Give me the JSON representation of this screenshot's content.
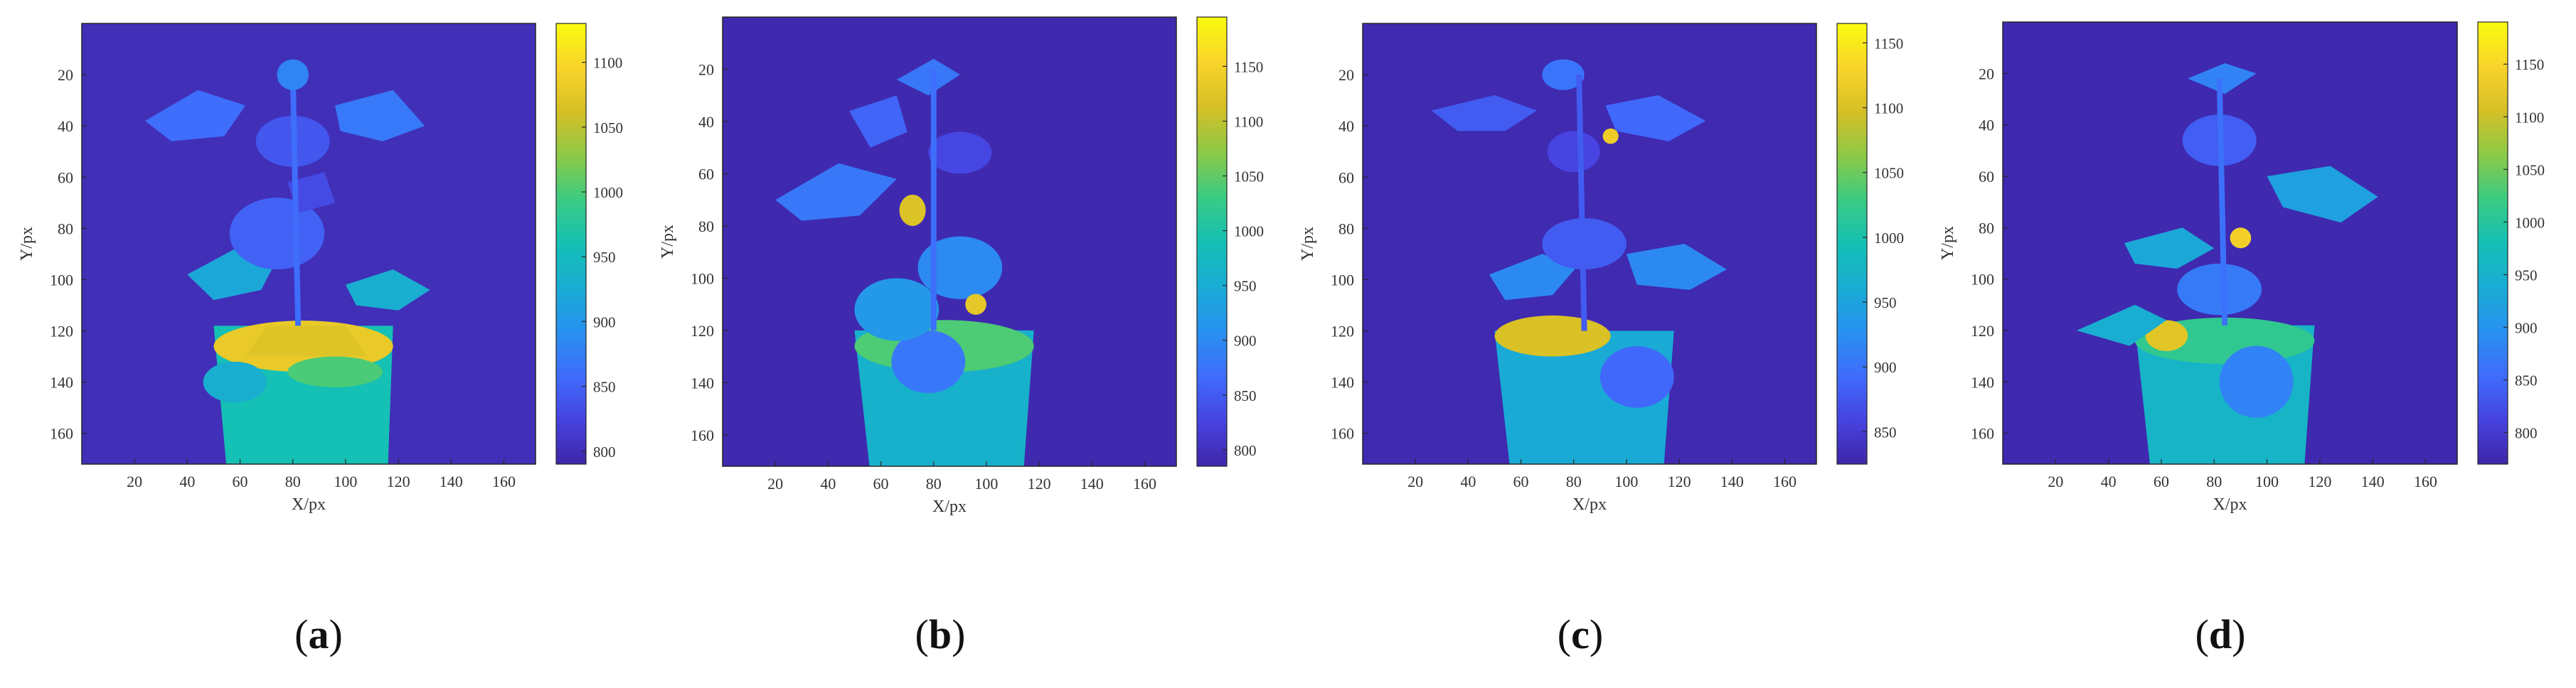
{
  "panels": [
    {
      "caption_prefix": "(",
      "caption_letter": "a",
      "caption_suffix": ")"
    },
    {
      "caption_prefix": "(",
      "caption_letter": "b",
      "caption_suffix": ")"
    },
    {
      "caption_prefix": "(",
      "caption_letter": "c",
      "caption_suffix": ")"
    },
    {
      "caption_prefix": "(",
      "caption_letter": "d",
      "caption_suffix": ")"
    }
  ],
  "chart_data": [
    {
      "type": "heatmap",
      "title": "",
      "xlabel": "X/px",
      "ylabel": "Y/px",
      "xlim": [
        0,
        172
      ],
      "ylim": [
        172,
        0
      ],
      "x_ticks": [
        20,
        40,
        60,
        80,
        100,
        120,
        140,
        160
      ],
      "y_ticks": [
        20,
        40,
        60,
        80,
        100,
        120,
        140,
        160
      ],
      "colorbar": {
        "min": 790,
        "max": 1130,
        "ticks": [
          800,
          850,
          900,
          950,
          1000,
          1050,
          1100
        ]
      },
      "background_value": 800,
      "grid": false
    },
    {
      "type": "heatmap",
      "title": "",
      "xlabel": "X/px",
      "ylabel": "Y/px",
      "xlim": [
        0,
        172
      ],
      "ylim": [
        172,
        0
      ],
      "x_ticks": [
        20,
        40,
        60,
        80,
        100,
        120,
        140,
        160
      ],
      "y_ticks": [
        20,
        40,
        60,
        80,
        100,
        120,
        140,
        160
      ],
      "colorbar": {
        "min": 785,
        "max": 1195,
        "ticks": [
          800,
          850,
          900,
          950,
          1000,
          1050,
          1100,
          1150
        ]
      },
      "background_value": 790,
      "grid": false
    },
    {
      "type": "heatmap",
      "title": "",
      "xlabel": "X/px",
      "ylabel": "Y/px",
      "xlim": [
        0,
        172
      ],
      "ylim": [
        172,
        0
      ],
      "x_ticks": [
        20,
        40,
        60,
        80,
        100,
        120,
        140,
        160
      ],
      "y_ticks": [
        20,
        40,
        60,
        80,
        100,
        120,
        140,
        160
      ],
      "colorbar": {
        "min": 825,
        "max": 1165,
        "ticks": [
          850,
          900,
          950,
          1000,
          1050,
          1100,
          1150
        ]
      },
      "background_value": 830,
      "grid": false
    },
    {
      "type": "heatmap",
      "title": "",
      "xlabel": "X/px",
      "ylabel": "Y/px",
      "xlim": [
        0,
        172
      ],
      "ylim": [
        172,
        0
      ],
      "x_ticks": [
        20,
        40,
        60,
        80,
        100,
        120,
        140,
        160
      ],
      "y_ticks": [
        20,
        40,
        60,
        80,
        100,
        120,
        140,
        160
      ],
      "colorbar": {
        "min": 770,
        "max": 1190,
        "ticks": [
          800,
          850,
          900,
          950,
          1000,
          1050,
          1100,
          1150
        ]
      },
      "background_value": 775,
      "grid": false
    }
  ]
}
